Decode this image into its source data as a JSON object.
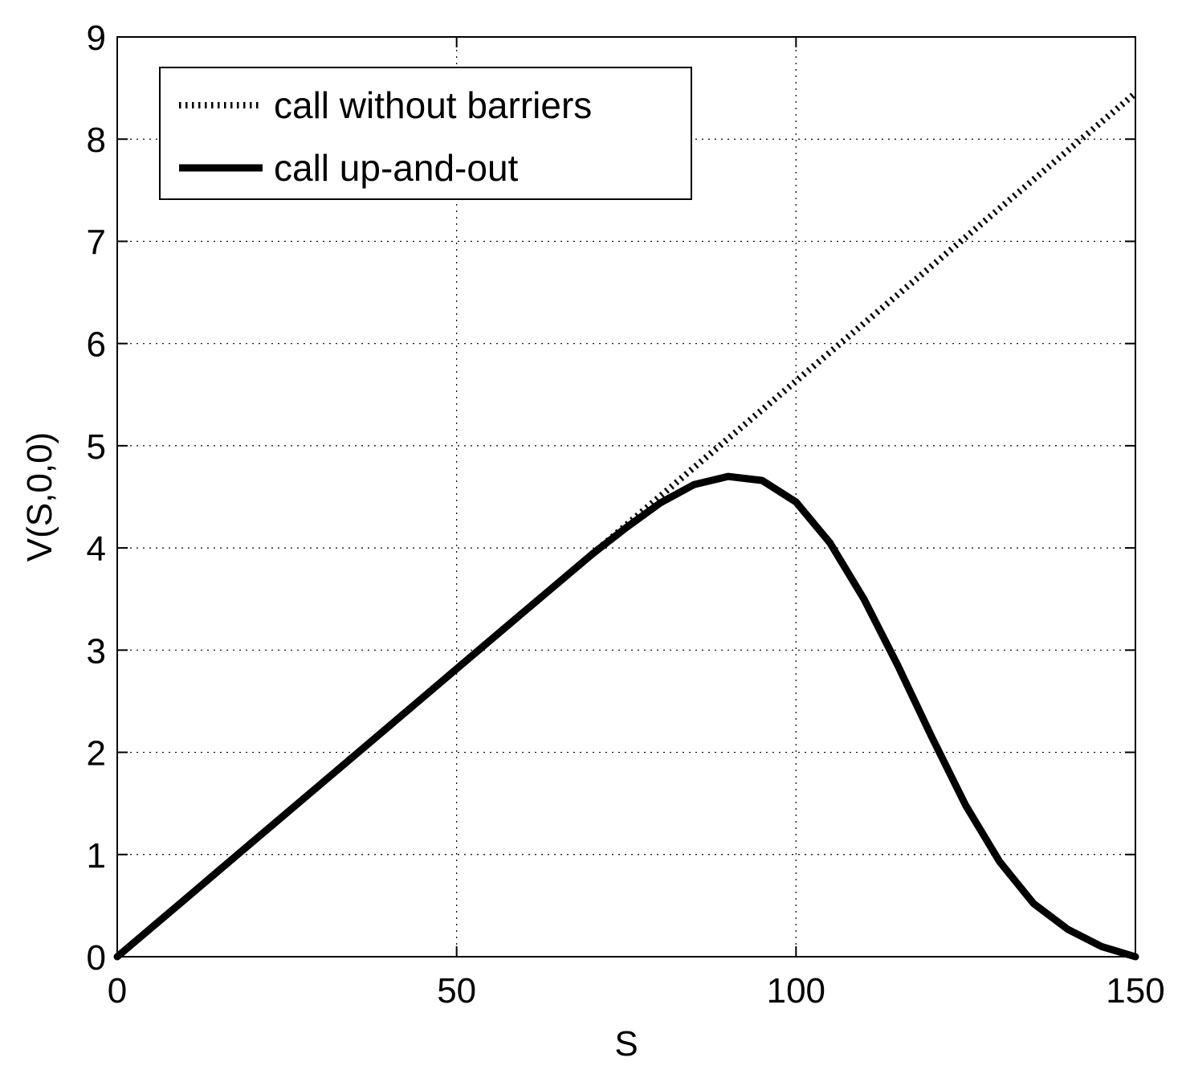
{
  "chart_data": {
    "type": "line",
    "title": "",
    "xlabel": "S",
    "ylabel": "V(S,0,0)",
    "xlim": [
      0,
      150
    ],
    "ylim": [
      0,
      9
    ],
    "xticks": [
      0,
      50,
      100,
      150
    ],
    "yticks": [
      0,
      1,
      2,
      3,
      4,
      5,
      6,
      7,
      8,
      9
    ],
    "grid": true,
    "legend_position": "top-left",
    "series": [
      {
        "name": "call without barriers",
        "style": "dotted",
        "color": "#000000",
        "x": [
          0,
          10,
          20,
          30,
          40,
          50,
          60,
          70,
          80,
          90,
          100,
          110,
          120,
          130,
          140,
          150
        ],
        "y": [
          0,
          0.563,
          1.127,
          1.69,
          2.253,
          2.817,
          3.38,
          3.943,
          4.507,
          5.07,
          5.633,
          6.197,
          6.76,
          7.323,
          7.887,
          8.45
        ]
      },
      {
        "name": "call up-and-out",
        "style": "solid-thick",
        "color": "#000000",
        "x": [
          0,
          10,
          20,
          30,
          40,
          50,
          60,
          70,
          75,
          80,
          85,
          90,
          95,
          100,
          105,
          110,
          115,
          120,
          125,
          130,
          135,
          140,
          145,
          150
        ],
        "y": [
          0,
          0.563,
          1.127,
          1.69,
          2.253,
          2.817,
          3.38,
          3.94,
          4.2,
          4.44,
          4.62,
          4.7,
          4.66,
          4.45,
          4.05,
          3.5,
          2.85,
          2.15,
          1.48,
          0.93,
          0.52,
          0.27,
          0.1,
          0
        ]
      }
    ]
  }
}
